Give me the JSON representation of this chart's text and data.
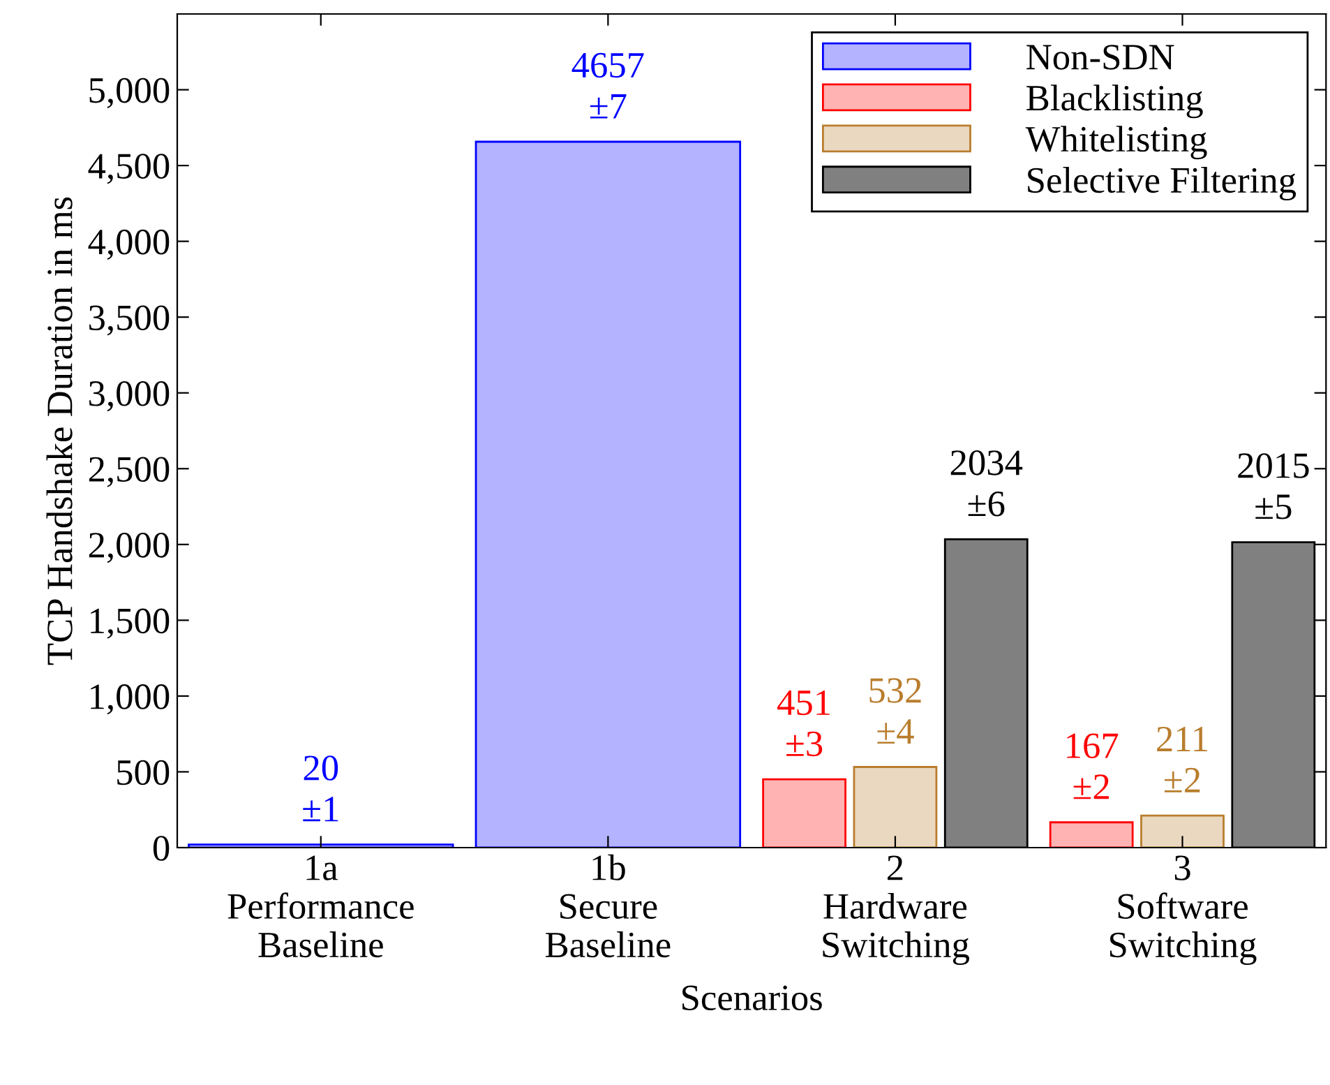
{
  "chart_data": {
    "type": "bar",
    "categories": [
      "1a\nPerformance\nBaseline",
      "1b\nSecure\nBaseline",
      "2\nHardware\nSwitching",
      "3\nSoftware\nSwitching"
    ],
    "xlabel": "Scenarios",
    "ylabel": "TCP Handshake Duration in ms",
    "series": [
      {
        "name": "Non-SDN",
        "color": "#b3b3ff",
        "values": [
          20,
          4657,
          null,
          null
        ],
        "value_labels": [
          "20\n±1",
          "4657\n±7",
          null,
          null
        ]
      },
      {
        "name": "Blacklisting",
        "color": "#ffb3b3",
        "values": [
          null,
          null,
          451,
          167
        ],
        "value_labels": [
          null,
          null,
          "451\n±3",
          "167\n±2"
        ]
      },
      {
        "name": "Whitelisting",
        "color": "#ead8c0",
        "values": [
          null,
          null,
          532,
          211
        ],
        "value_labels": [
          null,
          null,
          "532\n±4",
          "211\n±2"
        ]
      },
      {
        "name": "Selective Filtering",
        "color": "#808080",
        "values": [
          null,
          null,
          2034,
          2015
        ],
        "value_labels": [
          null,
          null,
          "2034\n±6",
          "2015\n±5"
        ]
      }
    ],
    "ylim": [
      0,
      5500
    ],
    "yticks": [
      0,
      500,
      {
        "value": 1000,
        "label": "1,000"
      },
      {
        "value": 1500,
        "label": "1,500"
      },
      {
        "value": 2000,
        "label": "2,000"
      },
      {
        "value": 2500,
        "label": "2,500"
      },
      {
        "value": 3000,
        "label": "3,000"
      },
      {
        "value": 3500,
        "label": "3,500"
      },
      {
        "value": 4000,
        "label": "4,000"
      },
      {
        "value": 4500,
        "label": "4,500"
      },
      {
        "value": 5000,
        "label": "5,000"
      }
    ],
    "grid": false,
    "legend": "top right"
  }
}
